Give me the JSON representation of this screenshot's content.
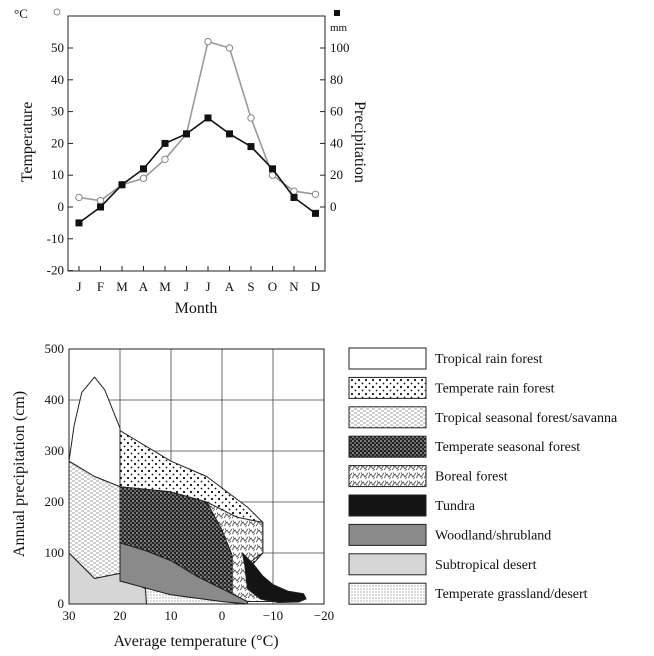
{
  "chart_data": [
    {
      "type": "line",
      "xlabel": "Month",
      "categories": [
        "J",
        "F",
        "M",
        "A",
        "M",
        "J",
        "J",
        "A",
        "S",
        "O",
        "N",
        "D"
      ],
      "y_left_label": "Temperature",
      "y_left_unit": "°C",
      "y_left_ticks": [
        50,
        40,
        30,
        20,
        10,
        0,
        -10,
        -20
      ],
      "y_left_range": [
        -20,
        60
      ],
      "y_right_label": "Precipitation",
      "y_right_unit": "mm",
      "y_right_ticks": [
        100,
        80,
        60,
        40,
        20,
        0
      ],
      "y_right_range": [
        0,
        120
      ],
      "grid": false,
      "series": [
        {
          "axis": "left",
          "marker": "circle",
          "color": "#9a9a9a",
          "values": [
            3,
            2,
            7,
            9,
            15,
            23,
            52,
            50,
            28,
            10,
            5,
            4
          ]
        },
        {
          "axis": "left",
          "marker": "square",
          "color": "#111111",
          "values": [
            -5,
            0,
            7,
            12,
            20,
            23,
            28,
            23,
            19,
            12,
            3,
            -2
          ]
        }
      ]
    },
    {
      "type": "area",
      "xlabel": "Average temperature (°C)",
      "ylabel": "Annual precipitation (cm)",
      "x_ticks": [
        30,
        20,
        10,
        0,
        -10,
        -20
      ],
      "x_range": [
        30,
        -20
      ],
      "y_ticks": [
        500,
        400,
        300,
        200,
        100,
        0
      ],
      "y_range": [
        0,
        500
      ],
      "grid": true,
      "legend_position": "right",
      "legend": [
        {
          "label": "Tropical rain forest",
          "pattern": "white"
        },
        {
          "label": "Temperate rain forest",
          "pattern": "sparse-dots"
        },
        {
          "label": "Tropical seasonal forest/savanna",
          "pattern": "dashes"
        },
        {
          "label": "Temperate seasonal forest",
          "pattern": "dense-dots"
        },
        {
          "label": "Boreal forest",
          "pattern": "scribble"
        },
        {
          "label": "Tundra",
          "pattern": "black"
        },
        {
          "label": "Woodland/shrubland",
          "pattern": "dark-gray"
        },
        {
          "label": "Subtropical desert",
          "pattern": "light-gray"
        },
        {
          "label": "Temperate grassland/desert",
          "pattern": "fine-dots"
        }
      ],
      "biomes": [
        {
          "name": "Tropical rain forest",
          "fill": "white",
          "polygon": [
            [
              30,
              280
            ],
            [
              29,
              350
            ],
            [
              27.5,
              415
            ],
            [
              25,
              445
            ],
            [
              23,
              420
            ],
            [
              20,
              345
            ],
            [
              20,
              230
            ],
            [
              25,
              250
            ],
            [
              30,
              280
            ]
          ]
        },
        {
          "name": "Tropical seasonal forest/savanna",
          "fill": "dashes",
          "polygon": [
            [
              30,
              280
            ],
            [
              25,
              250
            ],
            [
              20,
              230
            ],
            [
              20,
              60
            ],
            [
              25,
              50
            ],
            [
              30,
              100
            ],
            [
              30,
              280
            ]
          ]
        },
        {
          "name": "Subtropical desert",
          "fill": "lightgray",
          "polygon": [
            [
              30,
              100
            ],
            [
              25,
              50
            ],
            [
              20,
              60
            ],
            [
              17,
              40
            ],
            [
              15,
              30
            ],
            [
              14.8,
              0
            ],
            [
              30,
              0
            ],
            [
              30,
              100
            ]
          ]
        },
        {
          "name": "Temperate grassland/desert",
          "fill": "finedots",
          "polygon": [
            [
              14.8,
              0
            ],
            [
              15,
              30
            ],
            [
              17,
              40
            ],
            [
              20,
              60
            ],
            [
              20,
              45
            ],
            [
              10,
              18
            ],
            [
              0,
              5
            ],
            [
              -5,
              0
            ],
            [
              14.8,
              0
            ]
          ]
        },
        {
          "name": "Woodland/shrubland",
          "fill": "darkgray",
          "polygon": [
            [
              20,
              120
            ],
            [
              20,
              45
            ],
            [
              10,
              18
            ],
            [
              0,
              5
            ],
            [
              -5,
              0
            ],
            [
              -5,
              5
            ],
            [
              -2,
              20
            ],
            [
              5,
              55
            ],
            [
              10,
              85
            ],
            [
              15,
              105
            ],
            [
              20,
              120
            ]
          ]
        },
        {
          "name": "Temperate seasonal forest",
          "fill": "densedots",
          "polygon": [
            [
              20,
              230
            ],
            [
              10,
              220
            ],
            [
              3,
              200
            ],
            [
              0,
              145
            ],
            [
              -2,
              95
            ],
            [
              -5,
              5
            ],
            [
              -2,
              20
            ],
            [
              5,
              55
            ],
            [
              10,
              85
            ],
            [
              15,
              105
            ],
            [
              20,
              120
            ],
            [
              20,
              230
            ]
          ]
        },
        {
          "name": "Temperate rain forest",
          "fill": "sparsedots",
          "polygon": [
            [
              20,
              340
            ],
            [
              10,
              280
            ],
            [
              3,
              250
            ],
            [
              -5,
              190
            ],
            [
              -8,
              160
            ],
            [
              -8,
              100
            ],
            [
              -4,
              55
            ],
            [
              -2,
              95
            ],
            [
              0,
              145
            ],
            [
              3,
              200
            ],
            [
              10,
              220
            ],
            [
              20,
              230
            ],
            [
              20,
              340
            ]
          ]
        },
        {
          "name": "Boreal forest",
          "fill": "scribble",
          "polygon": [
            [
              3,
              200
            ],
            [
              -3,
              170
            ],
            [
              -8,
              160
            ],
            [
              -8,
              100
            ],
            [
              -4.5,
              75
            ],
            [
              -5,
              30
            ],
            [
              -7.5,
              10
            ],
            [
              -10,
              5
            ],
            [
              -5,
              5
            ],
            [
              -2,
              20
            ],
            [
              -2,
              95
            ],
            [
              0,
              145
            ],
            [
              3,
              200
            ]
          ]
        },
        {
          "name": "Tundra",
          "fill": "black",
          "polygon": [
            [
              -4,
              100
            ],
            [
              -6,
              80
            ],
            [
              -8,
              55
            ],
            [
              -10,
              38
            ],
            [
              -13,
              25
            ],
            [
              -16,
              20
            ],
            [
              -16.5,
              10
            ],
            [
              -15,
              4
            ],
            [
              -11,
              3
            ],
            [
              -7.5,
              10
            ],
            [
              -5,
              30
            ],
            [
              -4.5,
              75
            ],
            [
              -4,
              100
            ]
          ]
        }
      ]
    }
  ]
}
